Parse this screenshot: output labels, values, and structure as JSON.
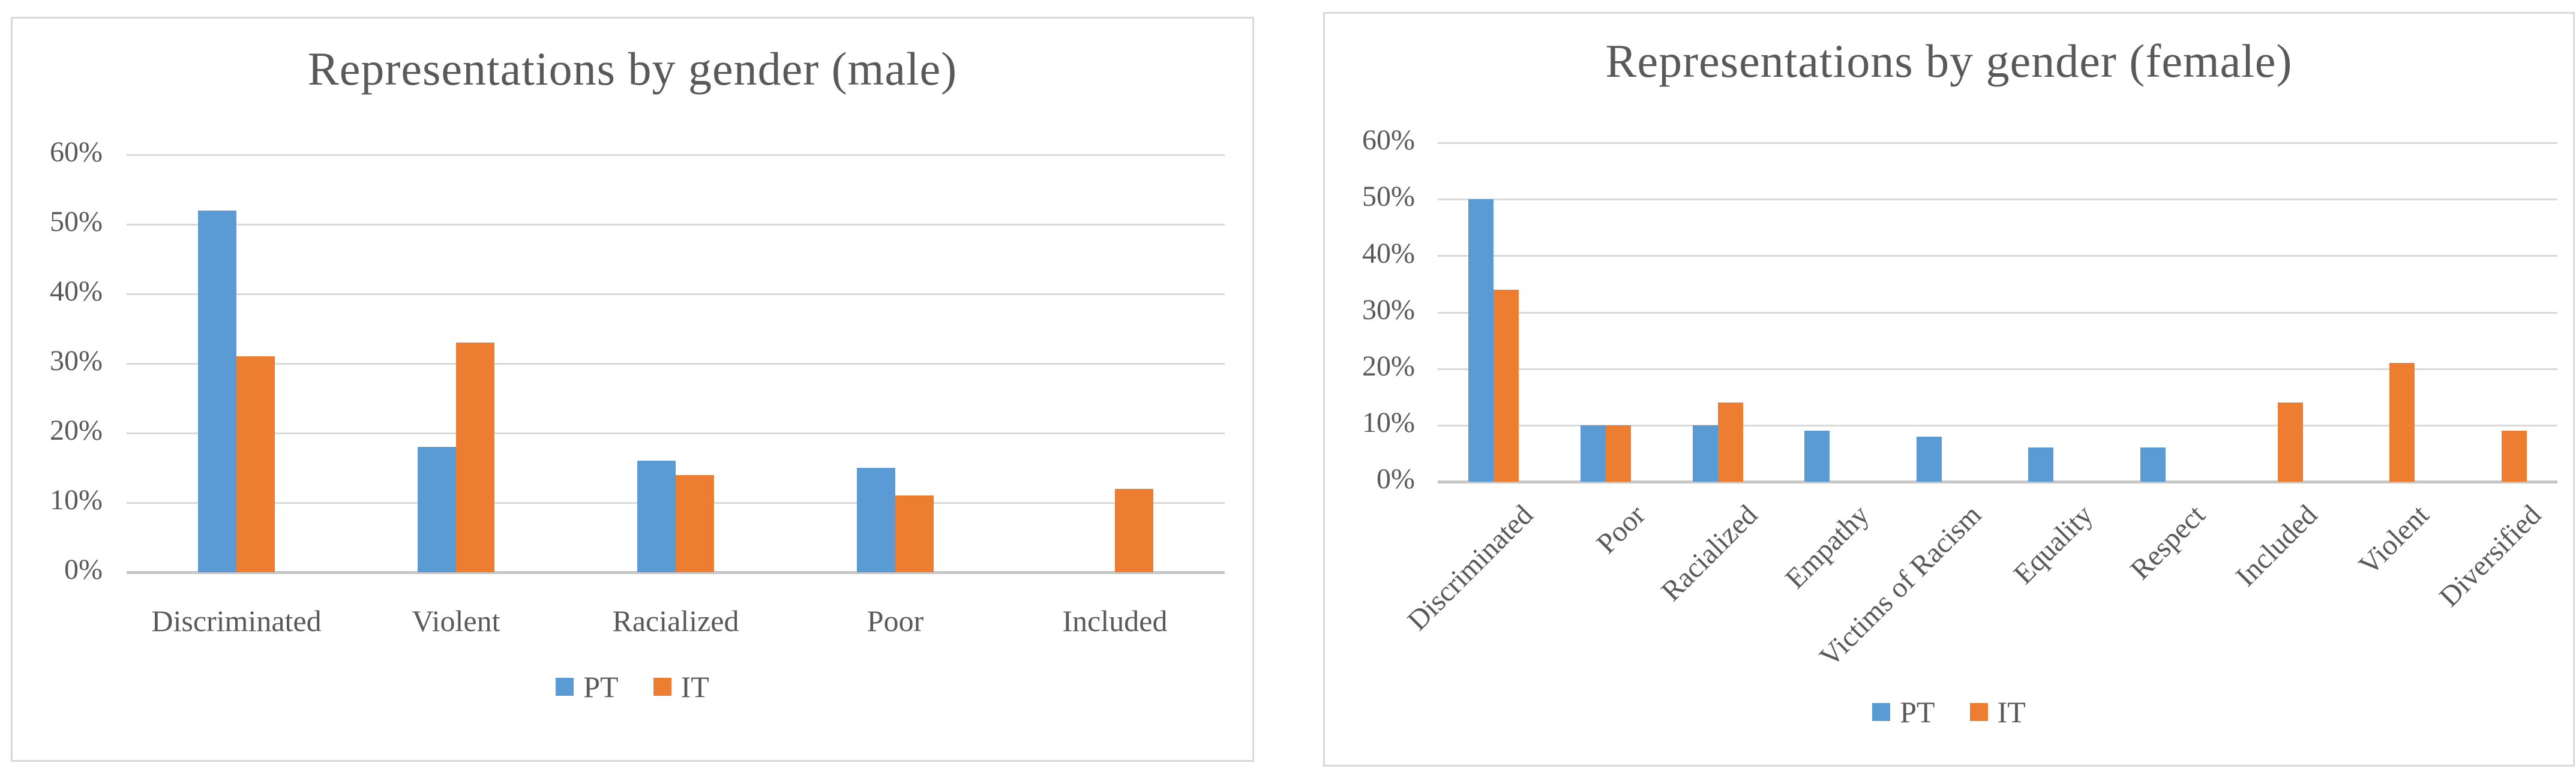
{
  "page": {
    "background": "#ffffff"
  },
  "colors": {
    "pt_blue": "#5B9BD5",
    "it_orange": "#ED7D31",
    "title_text": "#595959",
    "axis_text": "#595959",
    "gridline": "#D9D9D9",
    "axis_line": "#C6C6C6",
    "panel_border": "#D9D9D9",
    "panel_background": "#FFFFFF"
  },
  "chart_data": [
    {
      "type": "bar",
      "title": "Representations by gender (male)",
      "categories": [
        "Discriminated",
        "Violent",
        "Racialized",
        "Poor",
        "Included"
      ],
      "series": [
        {
          "name": "PT",
          "color": "#5B9BD5",
          "values": [
            52,
            18,
            16,
            15,
            0
          ]
        },
        {
          "name": "IT",
          "color": "#ED7D31",
          "values": [
            31,
            33,
            14,
            11,
            12
          ]
        }
      ],
      "yticks": [
        "60%",
        "50%",
        "40%",
        "30%",
        "20%",
        "10%",
        "0%"
      ],
      "ylim": [
        0,
        60
      ],
      "ytick_step": 10,
      "grid": true,
      "legend_position": "bottom",
      "x_label_rotation": 0,
      "xlabel": "",
      "ylabel": ""
    },
    {
      "type": "bar",
      "title": "Representations by gender (female)",
      "categories": [
        "Discriminated",
        "Poor",
        "Racialized",
        "Empathy",
        "Victims of Racism",
        "Equality",
        "Respect",
        "Included",
        "Violent",
        "Diversified"
      ],
      "series": [
        {
          "name": "PT",
          "color": "#5B9BD5",
          "values": [
            50,
            10,
            10,
            9,
            8,
            6,
            6,
            0,
            0,
            0
          ]
        },
        {
          "name": "IT",
          "color": "#ED7D31",
          "values": [
            34,
            10,
            14,
            0,
            0,
            0,
            0,
            14,
            21,
            9
          ]
        }
      ],
      "yticks": [
        "60%",
        "50%",
        "40%",
        "30%",
        "20%",
        "10%",
        "0%"
      ],
      "ylim": [
        0,
        60
      ],
      "ytick_step": 10,
      "grid": true,
      "legend_position": "bottom",
      "x_label_rotation": -45,
      "xlabel": "",
      "ylabel": ""
    }
  ],
  "legend": {
    "pt_label": "PT",
    "it_label": "IT"
  }
}
